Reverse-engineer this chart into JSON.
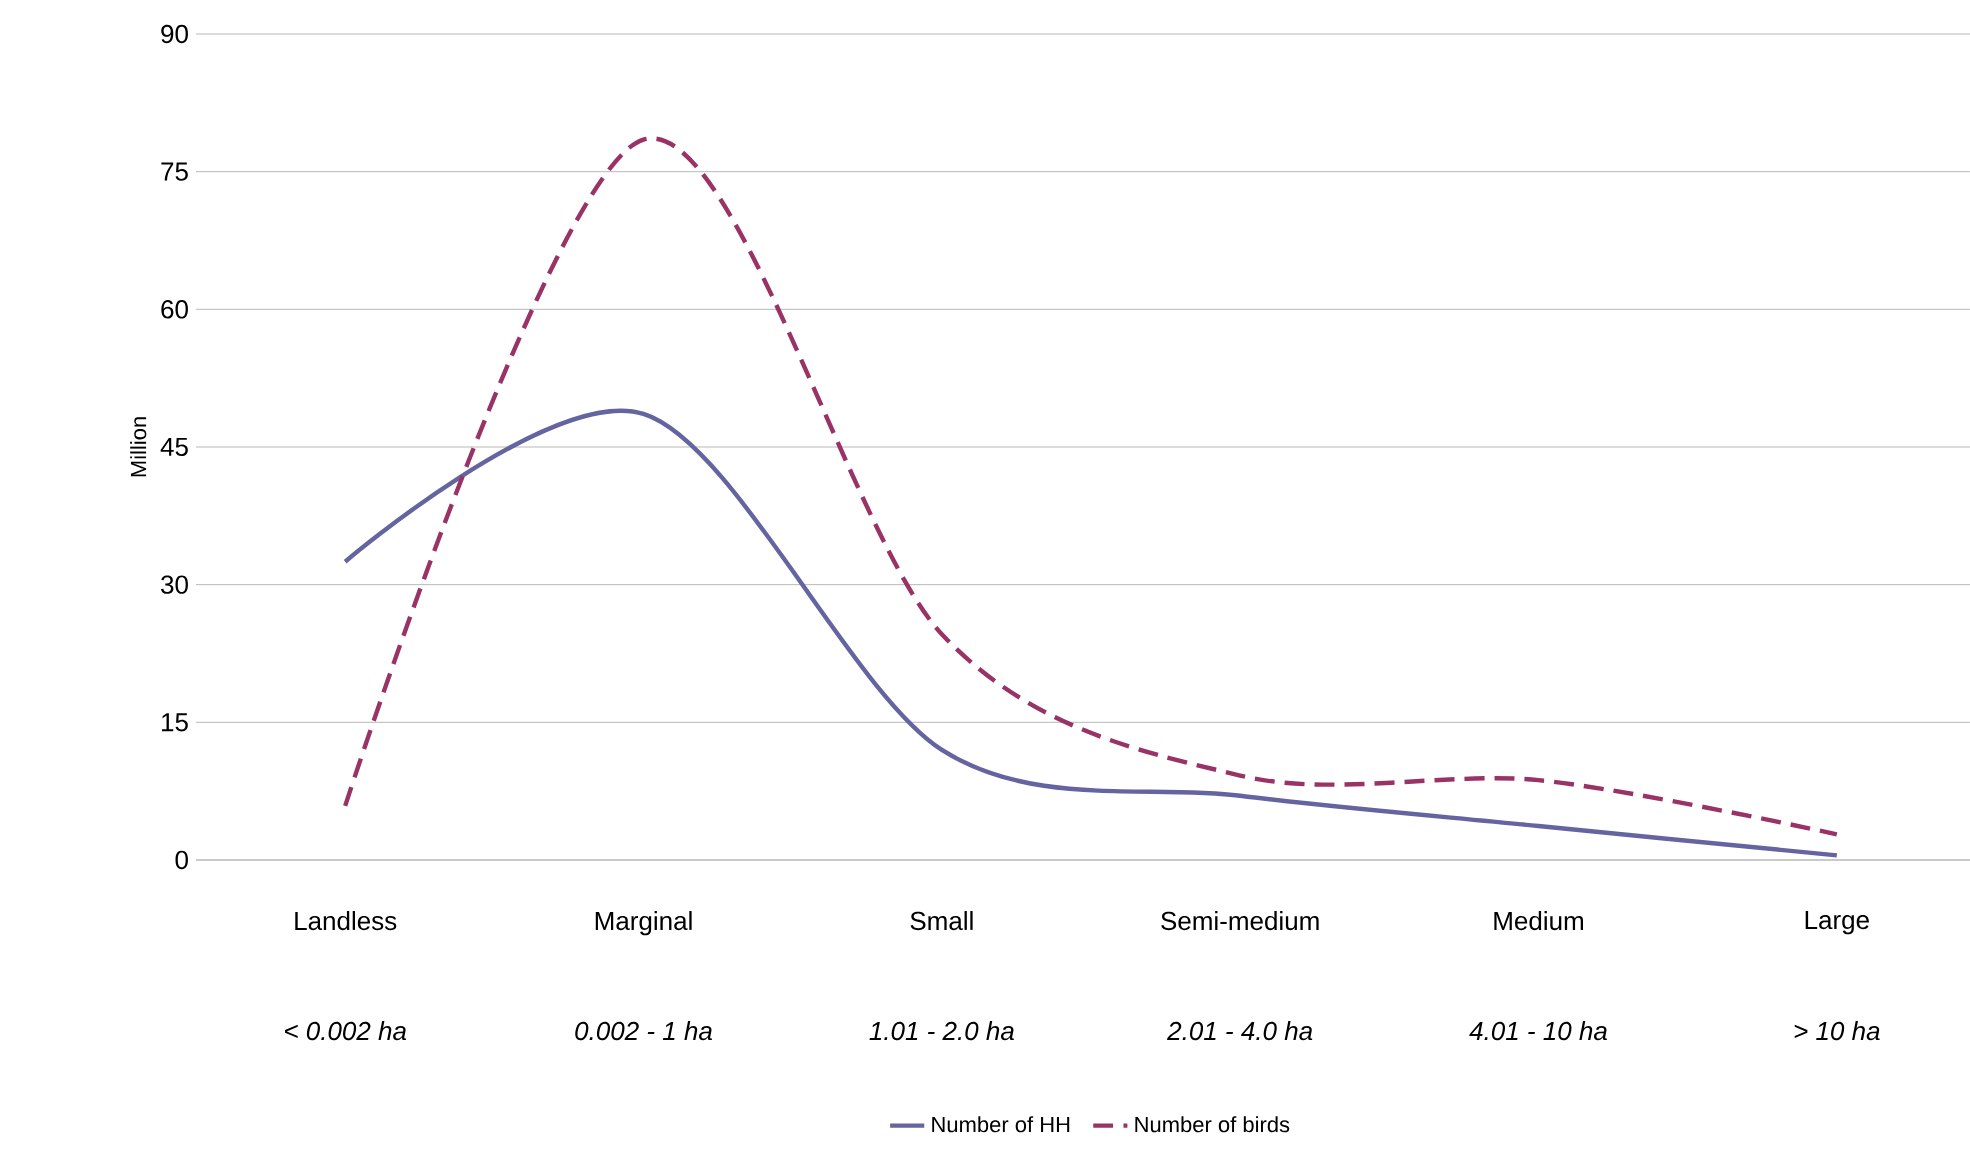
{
  "chart_data": {
    "type": "line",
    "ylabel": "Million",
    "categories": [
      "Landless",
      "Marginal",
      "Small",
      "Semi-medium",
      "Medium",
      "Large"
    ],
    "annotations": [
      "< 0.002 ha",
      "0.002 - 1 ha",
      "1.01 - 2.0 ha",
      "2.01 - 4.0 ha",
      "4.01 - 10 ha",
      "> 10 ha"
    ],
    "series": [
      {
        "name": "Number of HH",
        "color": "#6464a0",
        "line_style": "solid",
        "values": [
          32.5,
          48.6,
          12,
          7,
          3.7,
          0.5
        ]
      },
      {
        "name": "Number of birds",
        "color": "#993366",
        "line_style": "dashed",
        "values": [
          5.9,
          78.5,
          24.6,
          9.2,
          8.7,
          2.8
        ]
      }
    ],
    "ylim": [
      0,
      90
    ],
    "yticks": [
      0,
      15,
      30,
      45,
      60,
      75,
      90
    ],
    "grid": "y",
    "legend": "bottom",
    "marker": "none"
  }
}
